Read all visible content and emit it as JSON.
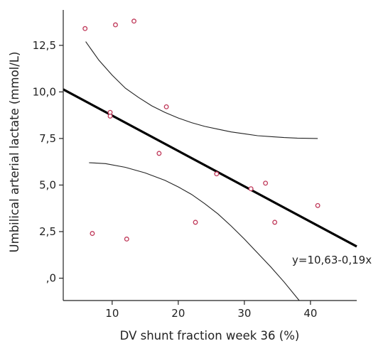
{
  "chart_data": {
    "type": "scatter",
    "xlabel": "DV shunt fraction week 36 (%)",
    "ylabel": "Umbilical arterial lactate (mmol/L)",
    "xlim": [
      2.6,
      47
    ],
    "ylim": [
      -1.2,
      14.4
    ],
    "x_ticks": [
      {
        "value": 10,
        "label": "10"
      },
      {
        "value": 20,
        "label": "20"
      },
      {
        "value": 30,
        "label": "30"
      },
      {
        "value": 40,
        "label": "40"
      }
    ],
    "y_ticks": [
      {
        "value": 0,
        "label": ",0"
      },
      {
        "value": 2.5,
        "label": "2,5"
      },
      {
        "value": 5,
        "label": "5,0"
      },
      {
        "value": 7.5,
        "label": "7,5"
      },
      {
        "value": 10,
        "label": "10,0"
      },
      {
        "value": 12.5,
        "label": "12,5"
      }
    ],
    "grid": false,
    "points": [
      {
        "x": 5.9,
        "y": 13.4
      },
      {
        "x": 7.0,
        "y": 2.4
      },
      {
        "x": 9.7,
        "y": 8.9
      },
      {
        "x": 9.7,
        "y": 8.7
      },
      {
        "x": 10.5,
        "y": 13.6
      },
      {
        "x": 12.2,
        "y": 2.1
      },
      {
        "x": 13.3,
        "y": 13.8
      },
      {
        "x": 17.1,
        "y": 6.7
      },
      {
        "x": 18.2,
        "y": 9.2
      },
      {
        "x": 22.6,
        "y": 3.0
      },
      {
        "x": 25.8,
        "y": 5.6
      },
      {
        "x": 31.0,
        "y": 4.8
      },
      {
        "x": 33.2,
        "y": 5.1
      },
      {
        "x": 34.6,
        "y": 3.0
      },
      {
        "x": 41.1,
        "y": 3.9
      }
    ],
    "point_color": "#c0395a",
    "regression": {
      "intercept": 10.63,
      "slope": -0.19,
      "x_range": [
        2.6,
        47
      ],
      "equation": "y=10,63-0,19x",
      "color": "#000000"
    },
    "confidence_band": {
      "upper": [
        {
          "x": 6,
          "y": 12.7
        },
        {
          "x": 8,
          "y": 11.7
        },
        {
          "x": 10,
          "y": 10.9
        },
        {
          "x": 12,
          "y": 10.2
        },
        {
          "x": 14,
          "y": 9.7
        },
        {
          "x": 16,
          "y": 9.25
        },
        {
          "x": 18,
          "y": 8.9
        },
        {
          "x": 20,
          "y": 8.6
        },
        {
          "x": 22,
          "y": 8.35
        },
        {
          "x": 24,
          "y": 8.15
        },
        {
          "x": 26,
          "y": 8.0
        },
        {
          "x": 28,
          "y": 7.85
        },
        {
          "x": 30,
          "y": 7.75
        },
        {
          "x": 32,
          "y": 7.65
        },
        {
          "x": 34,
          "y": 7.6
        },
        {
          "x": 36,
          "y": 7.55
        },
        {
          "x": 38,
          "y": 7.52
        },
        {
          "x": 41.1,
          "y": 7.5
        }
      ],
      "lower": [
        {
          "x": 6.5,
          "y": 6.2
        },
        {
          "x": 9,
          "y": 6.15
        },
        {
          "x": 12,
          "y": 5.95
        },
        {
          "x": 15,
          "y": 5.65
        },
        {
          "x": 18,
          "y": 5.25
        },
        {
          "x": 20,
          "y": 4.9
        },
        {
          "x": 22,
          "y": 4.5
        },
        {
          "x": 24,
          "y": 4.0
        },
        {
          "x": 26,
          "y": 3.45
        },
        {
          "x": 28,
          "y": 2.8
        },
        {
          "x": 30,
          "y": 2.1
        },
        {
          "x": 32,
          "y": 1.35
        },
        {
          "x": 34,
          "y": 0.6
        },
        {
          "x": 36,
          "y": -0.2
        },
        {
          "x": 38.3,
          "y": -1.2
        }
      ],
      "color": "#222222"
    }
  }
}
